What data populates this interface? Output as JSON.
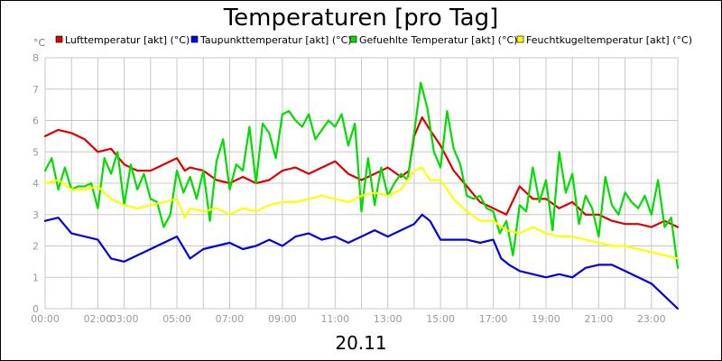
{
  "chart_data": {
    "type": "line",
    "title": "Temperaturen [pro Tag]",
    "unit_label": "°C",
    "footer": "20.11",
    "ylim": [
      0,
      8
    ],
    "y_ticks": [
      "0",
      "1",
      "2",
      "3",
      "4",
      "5",
      "6",
      "7",
      "8"
    ],
    "x_range_hours": [
      0,
      24
    ],
    "x_ticks": [
      {
        "hour": 0,
        "label": "00:00"
      },
      {
        "hour": 2,
        "label": "02:00"
      },
      {
        "hour": 3,
        "label": "03:00"
      },
      {
        "hour": 5,
        "label": "05:00"
      },
      {
        "hour": 7,
        "label": "07:00"
      },
      {
        "hour": 9,
        "label": "09:00"
      },
      {
        "hour": 11,
        "label": "11:00"
      },
      {
        "hour": 13,
        "label": "13:00"
      },
      {
        "hour": 15,
        "label": "15:00"
      },
      {
        "hour": 17,
        "label": "17:00"
      },
      {
        "hour": 19,
        "label": "19:00"
      },
      {
        "hour": 21,
        "label": "21:00"
      },
      {
        "hour": 23,
        "label": "23:00"
      }
    ],
    "grid": true,
    "legend_position": "top",
    "series": [
      {
        "name": "Lufttemperatur [akt] (°C)",
        "color": "#e00000",
        "x": [
          0,
          0.5,
          1,
          1.5,
          2,
          2.5,
          3,
          3.5,
          4,
          4.5,
          5,
          5.3,
          5.5,
          6,
          6.5,
          7,
          7.5,
          8,
          8.5,
          9,
          9.5,
          10,
          10.5,
          11,
          11.5,
          12,
          12.5,
          13,
          13.5,
          13.8,
          14,
          14.3,
          14.6,
          15,
          15.5,
          16,
          16.5,
          17,
          17.5,
          18,
          18.5,
          19,
          19.5,
          20,
          20.5,
          21,
          21.5,
          22,
          22.5,
          23,
          23.5,
          24
        ],
        "y": [
          5.5,
          5.7,
          5.6,
          5.4,
          5.0,
          5.1,
          4.6,
          4.4,
          4.4,
          4.6,
          4.8,
          4.4,
          4.5,
          4.4,
          4.1,
          4.0,
          4.2,
          4.0,
          4.1,
          4.4,
          4.5,
          4.3,
          4.5,
          4.7,
          4.3,
          4.1,
          4.3,
          4.5,
          4.2,
          4.4,
          5.5,
          6.1,
          5.7,
          5.2,
          4.4,
          3.9,
          3.4,
          3.2,
          3.0,
          3.9,
          3.5,
          3.5,
          3.2,
          3.4,
          3.0,
          3.0,
          2.8,
          2.7,
          2.7,
          2.6,
          2.8,
          2.6
        ]
      },
      {
        "name": "Taupunkttemperatur [akt] (°C)",
        "color": "#0000e0",
        "x": [
          0,
          0.5,
          1,
          1.5,
          2,
          2.5,
          3,
          3.5,
          4,
          4.5,
          5,
          5.5,
          6,
          6.5,
          7,
          7.5,
          8,
          8.5,
          9,
          9.5,
          10,
          10.5,
          11,
          11.5,
          12,
          12.5,
          13,
          13.5,
          14,
          14.3,
          14.6,
          15,
          15.5,
          16,
          16.5,
          17,
          17.3,
          17.6,
          18,
          18.5,
          19,
          19.5,
          20,
          20.5,
          21,
          21.5,
          22,
          22.5,
          23,
          23.5,
          24
        ],
        "y": [
          2.8,
          2.9,
          2.4,
          2.3,
          2.2,
          1.6,
          1.5,
          1.7,
          1.9,
          2.1,
          2.3,
          1.6,
          1.9,
          2.0,
          2.1,
          1.9,
          2.0,
          2.2,
          2.0,
          2.3,
          2.4,
          2.2,
          2.3,
          2.1,
          2.3,
          2.5,
          2.3,
          2.5,
          2.7,
          3.0,
          2.8,
          2.2,
          2.2,
          2.2,
          2.1,
          2.2,
          1.6,
          1.4,
          1.2,
          1.1,
          1.0,
          1.1,
          1.0,
          1.3,
          1.4,
          1.4,
          1.2,
          1.0,
          0.8,
          0.4,
          0.0
        ]
      },
      {
        "name": "Gefuehlte Temperatur [akt] (°C)",
        "color": "#00dd00",
        "x": [
          0,
          0.25,
          0.5,
          0.75,
          1,
          1.25,
          1.5,
          1.75,
          2,
          2.25,
          2.5,
          2.75,
          3,
          3.25,
          3.5,
          3.75,
          4,
          4.25,
          4.5,
          4.75,
          5,
          5.25,
          5.5,
          5.75,
          6,
          6.25,
          6.5,
          6.75,
          7,
          7.25,
          7.5,
          7.75,
          8,
          8.25,
          8.5,
          8.75,
          9,
          9.25,
          9.5,
          9.75,
          10,
          10.25,
          10.5,
          10.75,
          11,
          11.25,
          11.5,
          11.75,
          12,
          12.25,
          12.5,
          12.75,
          13,
          13.25,
          13.5,
          13.75,
          14,
          14.25,
          14.5,
          14.75,
          15,
          15.25,
          15.5,
          15.75,
          16,
          16.25,
          16.5,
          16.75,
          17,
          17.25,
          17.5,
          17.75,
          18,
          18.25,
          18.5,
          18.75,
          19,
          19.25,
          19.5,
          19.75,
          20,
          20.25,
          20.5,
          20.75,
          21,
          21.25,
          21.5,
          21.75,
          22,
          22.25,
          22.5,
          22.75,
          23,
          23.25,
          23.5,
          23.75,
          24
        ],
        "y": [
          4.4,
          4.8,
          3.8,
          4.5,
          3.8,
          3.9,
          3.9,
          4.0,
          3.2,
          4.8,
          4.3,
          5.0,
          3.3,
          4.6,
          3.8,
          4.3,
          3.5,
          3.4,
          2.6,
          3.0,
          4.4,
          3.7,
          4.2,
          3.5,
          4.4,
          2.8,
          4.7,
          5.4,
          3.8,
          4.6,
          4.4,
          5.8,
          4.0,
          5.9,
          5.6,
          4.8,
          6.2,
          6.3,
          6.0,
          5.8,
          6.2,
          5.4,
          5.7,
          6.0,
          5.8,
          6.2,
          5.2,
          5.9,
          3.1,
          4.8,
          3.3,
          4.5,
          3.6,
          4.0,
          4.3,
          4.1,
          5.6,
          7.2,
          6.4,
          5.0,
          4.5,
          6.3,
          5.1,
          4.6,
          3.6,
          3.5,
          3.6,
          3.2,
          3.1,
          2.4,
          2.8,
          1.7,
          3.3,
          3.1,
          4.5,
          3.4,
          4.1,
          2.5,
          5.0,
          3.7,
          4.3,
          2.7,
          3.6,
          3.2,
          2.3,
          4.2,
          3.3,
          3.0,
          3.7,
          3.4,
          3.2,
          3.6,
          3.0,
          4.1,
          2.6,
          2.9,
          1.3
        ]
      },
      {
        "name": "Feuchtkugeltemperatur [akt] (°C)",
        "color": "#ffff00",
        "x": [
          0,
          0.5,
          1,
          1.5,
          2,
          2.5,
          3,
          3.5,
          4,
          4.5,
          5,
          5.3,
          5.5,
          6,
          6.5,
          7,
          7.5,
          8,
          8.5,
          9,
          9.5,
          10,
          10.5,
          11,
          11.5,
          12,
          12.5,
          13,
          13.5,
          14,
          14.3,
          14.6,
          15,
          15.5,
          16,
          16.5,
          17,
          17.5,
          18,
          18.5,
          19,
          19.5,
          20,
          20.5,
          21,
          21.5,
          22,
          22.5,
          23,
          23.5,
          24
        ],
        "y": [
          4.0,
          4.1,
          3.8,
          3.8,
          3.9,
          3.5,
          3.3,
          3.2,
          3.3,
          3.4,
          3.5,
          2.9,
          3.2,
          3.1,
          3.2,
          3.0,
          3.2,
          3.1,
          3.3,
          3.4,
          3.4,
          3.5,
          3.6,
          3.5,
          3.4,
          3.6,
          3.7,
          3.6,
          3.8,
          4.4,
          4.5,
          4.1,
          4.1,
          3.5,
          3.1,
          2.8,
          2.8,
          2.5,
          2.4,
          2.6,
          2.4,
          2.3,
          2.3,
          2.2,
          2.1,
          2.0,
          2.0,
          1.9,
          1.8,
          1.7,
          1.6
        ]
      }
    ]
  }
}
